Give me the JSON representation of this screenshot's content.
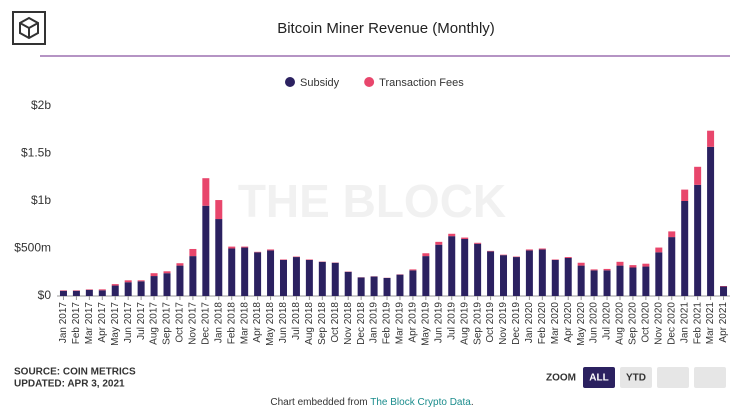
{
  "brand": {
    "watermark": "THE BLOCK"
  },
  "chart_data": {
    "type": "stacked_bar",
    "title": "Bitcoin Miner Revenue (Monthly)",
    "categories": [
      "Jan 2017",
      "Feb 2017",
      "Mar 2017",
      "Apr 2017",
      "May 2017",
      "Jun 2017",
      "Jul 2017",
      "Aug 2017",
      "Sep 2017",
      "Oct 2017",
      "Nov 2017",
      "Dec 2017",
      "Jan 2018",
      "Feb 2018",
      "Mar 2018",
      "Apr 2018",
      "May 2018",
      "Jun 2018",
      "Jul 2018",
      "Aug 2018",
      "Sep 2018",
      "Oct 2018",
      "Nov 2018",
      "Dec 2018",
      "Jan 2019",
      "Feb 2019",
      "Mar 2019",
      "Apr 2019",
      "May 2019",
      "Jun 2019",
      "Jul 2019",
      "Aug 2019",
      "Sep 2019",
      "Oct 2019",
      "Nov 2019",
      "Dec 2019",
      "Jan 2020",
      "Feb 2020",
      "Mar 2020",
      "Apr 2020",
      "May 2020",
      "Jun 2020",
      "Jul 2020",
      "Aug 2020",
      "Sep 2020",
      "Oct 2020",
      "Nov 2020",
      "Dec 2020",
      "Jan 2021",
      "Feb 2021",
      "Mar 2021",
      "Apr 2021"
    ],
    "series": [
      {
        "name": "Subsidy",
        "color": "#2b2160",
        "values": [
          55000000,
          55000000,
          65000000,
          60000000,
          110000000,
          145000000,
          155000000,
          210000000,
          240000000,
          320000000,
          420000000,
          950000000,
          810000000,
          500000000,
          510000000,
          460000000,
          480000000,
          380000000,
          410000000,
          380000000,
          360000000,
          350000000,
          255000000,
          195000000,
          205000000,
          190000000,
          225000000,
          270000000,
          420000000,
          540000000,
          630000000,
          600000000,
          550000000,
          470000000,
          430000000,
          410000000,
          480000000,
          490000000,
          380000000,
          400000000,
          320000000,
          270000000,
          270000000,
          320000000,
          300000000,
          310000000,
          460000000,
          620000000,
          1000000000,
          1170000000,
          1570000000,
          100000000
        ]
      },
      {
        "name": "Transaction Fees",
        "color": "#e8466c",
        "values": [
          5000000,
          5000000,
          5000000,
          10000000,
          15000000,
          20000000,
          10000000,
          30000000,
          20000000,
          25000000,
          75000000,
          290000000,
          200000000,
          20000000,
          10000000,
          5000000,
          10000000,
          5000000,
          5000000,
          5000000,
          3000000,
          3000000,
          3000000,
          2000000,
          2000000,
          2000000,
          3000000,
          10000000,
          30000000,
          30000000,
          25000000,
          15000000,
          10000000,
          5000000,
          5000000,
          5000000,
          10000000,
          10000000,
          5000000,
          10000000,
          30000000,
          10000000,
          15000000,
          40000000,
          25000000,
          30000000,
          50000000,
          60000000,
          120000000,
          190000000,
          170000000,
          5000000
        ]
      }
    ],
    "ylim": [
      0,
      2000000000
    ],
    "yticks": [
      {
        "value": 0,
        "label": "$0"
      },
      {
        "value": 500000000,
        "label": "$500m"
      },
      {
        "value": 1000000000,
        "label": "$1b"
      },
      {
        "value": 1500000000,
        "label": "$1.5b"
      },
      {
        "value": 2000000000,
        "label": "$2b"
      }
    ],
    "grid": false,
    "legend": "top"
  },
  "footer": {
    "source": "SOURCE: COIN METRICS",
    "updated": "UPDATED: APR 3, 2021",
    "embed_text": "Chart embedded from ",
    "embed_link": "The Block Crypto Data",
    "embed_end": "."
  },
  "zoom": {
    "label": "ZOOM",
    "buttons": [
      "ALL",
      "YTD"
    ]
  }
}
